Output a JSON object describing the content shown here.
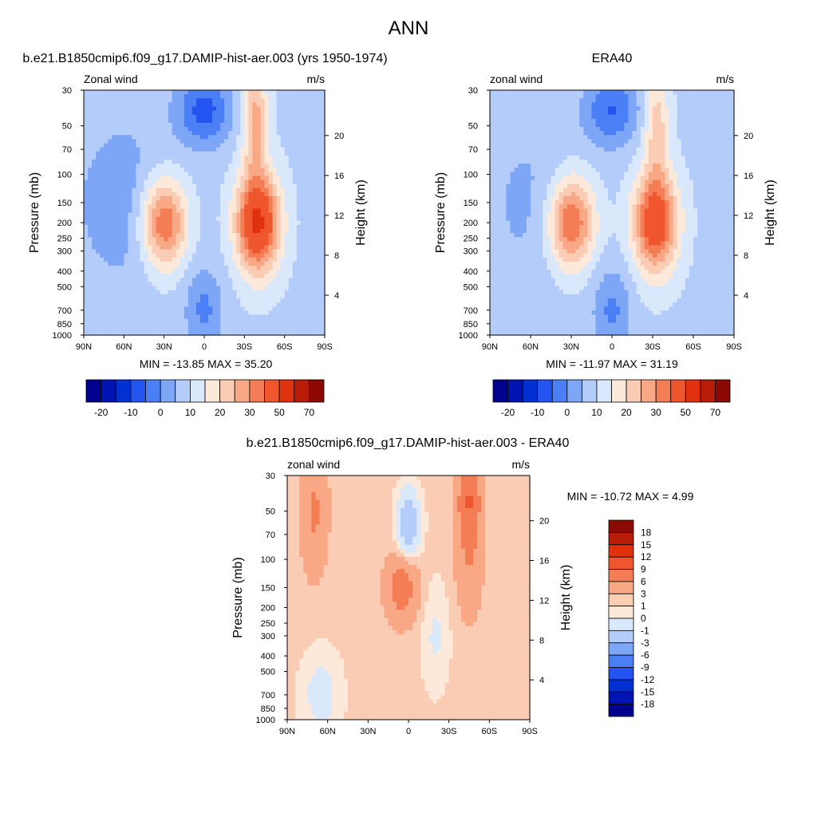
{
  "chart_data": {
    "suptitle": "ANN",
    "colors": {
      "panels": [
        "#00008e",
        "#0014b4",
        "#0030d2",
        "#2454f0",
        "#4a7ff5",
        "#7ea6f7",
        "#b4ccf9",
        "#dae8fc",
        "#fde9da",
        "#fbccb4",
        "#f8a884",
        "#f47d55",
        "#f0562d",
        "#e0320f",
        "#b81b08",
        "#8c0a03"
      ],
      "diff": [
        "#00008e",
        "#0014b4",
        "#0030d2",
        "#2454f0",
        "#4a7ff5",
        "#7ea6f7",
        "#b4ccf9",
        "#dae8fc",
        "#fde9da",
        "#fbccb4",
        "#f8a884",
        "#f47d55",
        "#f0562d",
        "#e0320f",
        "#b81b08",
        "#8c0a03"
      ]
    },
    "charts": [
      {
        "type": "heatmap",
        "title": "b.e21.B1850cmip6.f09_g17.DAMIP-hist-aer.003 (yrs 1950-1974)",
        "left_label": "Zonal wind",
        "right_label": "m/s",
        "ylabel": "Pressure (mb)",
        "y2label": "Height (km)",
        "x_ticks": [
          "90N",
          "60N",
          "30N",
          "0",
          "30S",
          "60S",
          "90S"
        ],
        "y_ticks": [
          "30",
          "50",
          "70",
          "100",
          "150",
          "200",
          "250",
          "300",
          "400",
          "500",
          "700",
          "850",
          "1000"
        ],
        "y2_ticks": [
          "20",
          "16",
          "12",
          "8",
          "4"
        ],
        "minmax": "MIN = -13.85  MAX =  35.20",
        "colorbar_labels": [
          "-20",
          "-10",
          "0",
          "10",
          "20",
          "30",
          "50",
          "70"
        ],
        "levels": [
          -25,
          -20,
          -15,
          -10,
          -5,
          0,
          5,
          10,
          15,
          20,
          25,
          30,
          40,
          50,
          60,
          70
        ],
        "blobs": [
          {
            "lat": 60,
            "p": 150,
            "amp": -7,
            "w": 40,
            "h": 2.6
          },
          {
            "lat": 30,
            "p": 200,
            "amp": 28,
            "w": 17,
            "h": 1.3
          },
          {
            "lat": -40,
            "p": 200,
            "amp": 38,
            "w": 16,
            "h": 1.4
          },
          {
            "lat": -38,
            "p": 45,
            "amp": 18,
            "w": 9,
            "h": 1.6
          },
          {
            "lat": 0,
            "p": 40,
            "amp": -16,
            "w": 20,
            "h": 1.0
          },
          {
            "lat": 0,
            "p": 700,
            "amp": -10,
            "w": 14,
            "h": 1.2
          }
        ]
      },
      {
        "type": "heatmap",
        "title": "ERA40",
        "left_label": "zonal wind",
        "right_label": "m/s",
        "ylabel": "Pressure (mb)",
        "y2label": "Height (km)",
        "x_ticks": [
          "90N",
          "60N",
          "30N",
          "0",
          "30S",
          "60S",
          "90S"
        ],
        "y_ticks": [
          "30",
          "50",
          "70",
          "100",
          "150",
          "200",
          "250",
          "300",
          "400",
          "500",
          "700",
          "850",
          "1000"
        ],
        "y2_ticks": [
          "20",
          "16",
          "12",
          "8",
          "4"
        ],
        "minmax": "MIN = -11.97  MAX =  31.19",
        "colorbar_labels": [
          "-20",
          "-10",
          "0",
          "10",
          "20",
          "30",
          "50",
          "70"
        ],
        "levels": [
          -25,
          -20,
          -15,
          -10,
          -5,
          0,
          5,
          10,
          15,
          20,
          25,
          30,
          40,
          50,
          60,
          70
        ],
        "blobs": [
          {
            "lat": 60,
            "p": 150,
            "amp": -5,
            "w": 40,
            "h": 2.6
          },
          {
            "lat": 30,
            "p": 200,
            "amp": 28,
            "w": 17,
            "h": 1.3
          },
          {
            "lat": -32,
            "p": 200,
            "amp": 33,
            "w": 16,
            "h": 1.4
          },
          {
            "lat": -33,
            "p": 50,
            "amp": 14,
            "w": 9,
            "h": 1.6
          },
          {
            "lat": 0,
            "p": 40,
            "amp": -14,
            "w": 20,
            "h": 1.0
          },
          {
            "lat": 0,
            "p": 700,
            "amp": -10,
            "w": 14,
            "h": 1.2
          }
        ]
      },
      {
        "type": "heatmap",
        "title": "b.e21.B1850cmip6.f09_g17.DAMIP-hist-aer.003 - ERA40",
        "left_label": "zonal wind",
        "right_label": "m/s",
        "ylabel": "Pressure (mb)",
        "y2label": "Height (km)",
        "x_ticks": [
          "90N",
          "60N",
          "30N",
          "0",
          "30S",
          "60S",
          "90S"
        ],
        "y_ticks": [
          "30",
          "50",
          "70",
          "100",
          "150",
          "200",
          "250",
          "300",
          "400",
          "500",
          "700",
          "850",
          "1000"
        ],
        "y2_ticks": [
          "20",
          "16",
          "12",
          "8",
          "4"
        ],
        "minmax": "MIN = -10.72  MAX =   4.99",
        "colorbar_labels": [
          "18",
          "15",
          "12",
          "9",
          "6",
          "3",
          "1",
          "0",
          "-1",
          "-3",
          "-6",
          "-9",
          "-12",
          "-15",
          "-18"
        ],
        "levels": [
          -21,
          -18,
          -15,
          -12,
          -9,
          -6,
          -3,
          -1,
          0,
          1,
          3,
          6,
          9,
          12,
          15,
          18
        ],
        "blobs": [
          {
            "lat": 5,
            "p": 150,
            "amp": 4,
            "w": 12,
            "h": 1.0
          },
          {
            "lat": -45,
            "p": 80,
            "amp": 3,
            "w": 10,
            "h": 2.0
          },
          {
            "lat": -45,
            "p": 40,
            "amp": 4,
            "w": 8,
            "h": 1.0
          },
          {
            "lat": 70,
            "p": 50,
            "amp": 3,
            "w": 10,
            "h": 1.8
          },
          {
            "lat": 0,
            "p": 60,
            "amp": -6,
            "w": 8,
            "h": 0.9
          },
          {
            "lat": 65,
            "p": 700,
            "amp": -2,
            "w": 14,
            "h": 1.2
          },
          {
            "lat": -20,
            "p": 300,
            "amp": -1.5,
            "w": 10,
            "h": 1.5
          }
        ]
      }
    ]
  }
}
